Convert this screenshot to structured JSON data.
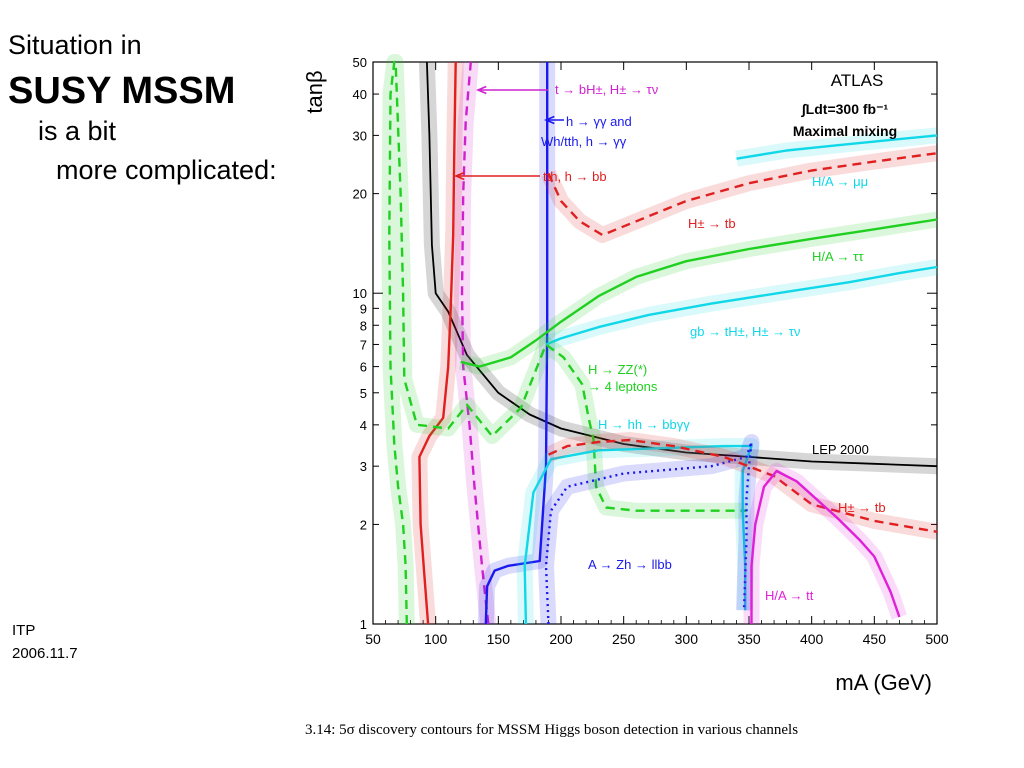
{
  "slide": {
    "title_line1": "Situation in",
    "title_line2": "SUSY MSSM",
    "title_line3": "is a bit",
    "title_line4": "more complicated:",
    "footer_org": "ITP",
    "footer_date": "2006.11.7",
    "caption": "3.14: 5σ discovery contours for MSSM Higgs boson detection in various channels"
  },
  "chart_data": {
    "type": "line",
    "experiment": "ATLAS",
    "luminosity": "∫Ldt=300 fb⁻¹",
    "scenario": "Maximal mixing",
    "xlabel": "mA (GeV)",
    "ylabel": "tanβ",
    "xlim": [
      50,
      500
    ],
    "ylim": [
      1,
      50
    ],
    "yscale": "log",
    "x_ticks": [
      50,
      100,
      150,
      200,
      250,
      300,
      350,
      400,
      450,
      500
    ],
    "y_ticks": [
      1,
      2,
      3,
      4,
      5,
      6,
      7,
      8,
      9,
      10,
      20,
      30,
      40,
      50
    ],
    "series": [
      {
        "name": "LEP 2000",
        "color": "#000000",
        "style": "solid",
        "points": [
          [
            93,
            50
          ],
          [
            95,
            30
          ],
          [
            97,
            14
          ],
          [
            100,
            10
          ],
          [
            110,
            8.8
          ],
          [
            125,
            6.5
          ],
          [
            150,
            5.0
          ],
          [
            175,
            4.3
          ],
          [
            200,
            3.9
          ],
          [
            250,
            3.5
          ],
          [
            300,
            3.3
          ],
          [
            350,
            3.2
          ],
          [
            400,
            3.1
          ],
          [
            450,
            3.05
          ],
          [
            500,
            3.0
          ]
        ]
      },
      {
        "name": "tth, h → bb",
        "color": "#e02020",
        "style": "solid",
        "points": [
          [
            94,
            1
          ],
          [
            91,
            1.4
          ],
          [
            88,
            2.0
          ],
          [
            87,
            3.2
          ],
          [
            95,
            3.7
          ],
          [
            106,
            4.2
          ],
          [
            110,
            6.0
          ],
          [
            112,
            9.0
          ],
          [
            114,
            15
          ],
          [
            115,
            30
          ],
          [
            116,
            50
          ]
        ]
      },
      {
        "name": "t → bH±, H± → τν",
        "color": "#d020d0",
        "style": "dashed",
        "points": [
          [
            142,
            1
          ],
          [
            137,
            1.5
          ],
          [
            131,
            2.6
          ],
          [
            127,
            4.0
          ],
          [
            122,
            6.0
          ],
          [
            121,
            10
          ],
          [
            122,
            20
          ],
          [
            124,
            33
          ],
          [
            128,
            50
          ]
        ]
      },
      {
        "name": "h → γγ and Wh/tth, h → γγ",
        "color": "#1a1aee",
        "style": "solid",
        "points": [
          [
            140,
            1
          ],
          [
            141,
            1.3
          ],
          [
            147,
            1.45
          ],
          [
            158,
            1.5
          ],
          [
            183,
            1.55
          ],
          [
            188,
            3
          ],
          [
            189,
            8
          ],
          [
            189,
            20
          ],
          [
            189,
            50
          ]
        ]
      },
      {
        "name": "H± → tb (high)",
        "color": "#e02020",
        "style": "dashed",
        "points": [
          [
            190,
            23
          ],
          [
            200,
            19
          ],
          [
            215,
            16.5
          ],
          [
            233,
            15
          ],
          [
            260,
            16.5
          ],
          [
            300,
            19
          ],
          [
            350,
            21.5
          ],
          [
            400,
            23.5
          ],
          [
            450,
            25
          ],
          [
            500,
            26.5
          ]
        ]
      },
      {
        "name": "H/A → μμ",
        "color": "#10d8e8",
        "style": "solid",
        "points": [
          [
            340,
            25.5
          ],
          [
            380,
            27
          ],
          [
            420,
            28
          ],
          [
            460,
            29
          ],
          [
            500,
            30
          ]
        ]
      },
      {
        "name": "H/A → ττ",
        "color": "#20d020",
        "style": "solid",
        "points": [
          [
            120,
            6.2
          ],
          [
            135,
            6.0
          ],
          [
            160,
            6.4
          ],
          [
            180,
            7.2
          ],
          [
            200,
            8.2
          ],
          [
            230,
            9.8
          ],
          [
            260,
            11.2
          ],
          [
            300,
            12.5
          ],
          [
            350,
            13.6
          ],
          [
            400,
            14.6
          ],
          [
            450,
            15.6
          ],
          [
            500,
            16.7
          ]
        ]
      },
      {
        "name": "gb → tH±, H± → τν",
        "color": "#10d8e8",
        "style": "solid",
        "points": [
          [
            188,
            7
          ],
          [
            200,
            7.3
          ],
          [
            230,
            7.9
          ],
          [
            270,
            8.6
          ],
          [
            320,
            9.3
          ],
          [
            380,
            10.1
          ],
          [
            430,
            10.8
          ],
          [
            470,
            11.5
          ],
          [
            500,
            12.0
          ]
        ]
      },
      {
        "name": "H → ZZ(*) → 4 leptons",
        "color": "#20d020",
        "style": "dashed",
        "points": [
          [
            77,
            1
          ],
          [
            76,
            1.5
          ],
          [
            74,
            2.0
          ],
          [
            70,
            2.6
          ],
          [
            67,
            3.5
          ],
          [
            64,
            6
          ],
          [
            63,
            15
          ],
          [
            64,
            40
          ],
          [
            67,
            50
          ],
          [
            68,
            50
          ],
          [
            72,
            20
          ],
          [
            74,
            10
          ],
          [
            75,
            5.5
          ],
          [
            85,
            4.0
          ],
          [
            110,
            3.9
          ],
          [
            125,
            4.6
          ],
          [
            145,
            3.7
          ],
          [
            168,
            4.5
          ],
          [
            188,
            7
          ],
          [
            202,
            6.4
          ],
          [
            217,
            5.3
          ],
          [
            222,
            4.2
          ],
          [
            226,
            3.6
          ],
          [
            228,
            2.6
          ],
          [
            236,
            2.25
          ],
          [
            260,
            2.2
          ],
          [
            300,
            2.2
          ],
          [
            335,
            2.2
          ],
          [
            348,
            2.2
          ]
        ]
      },
      {
        "name": "H → hh → bbγγ",
        "color": "#10d8e8",
        "style": "solid",
        "points": [
          [
            172,
            1
          ],
          [
            171,
            1.5
          ],
          [
            178,
            2.5
          ],
          [
            192,
            3.15
          ],
          [
            230,
            3.35
          ],
          [
            280,
            3.4
          ],
          [
            330,
            3.45
          ],
          [
            352,
            3.45
          ],
          [
            345,
            2.9
          ],
          [
            345,
            2.2
          ],
          [
            347,
            1.5
          ],
          [
            347,
            1.1
          ]
        ]
      },
      {
        "name": "A → Zh → llbb",
        "color": "#1a1aee",
        "style": "dotted",
        "points": [
          [
            190,
            1
          ],
          [
            188,
            1.5
          ],
          [
            192,
            2.2
          ],
          [
            205,
            2.6
          ],
          [
            250,
            2.85
          ],
          [
            320,
            3.0
          ],
          [
            348,
            3.2
          ],
          [
            352,
            3.55
          ],
          [
            350,
            3.0
          ],
          [
            348,
            2.4
          ],
          [
            348,
            1.8
          ],
          [
            346,
            1.1
          ]
        ]
      },
      {
        "name": "H± → tb (low)",
        "color": "#e02020",
        "style": "dashed",
        "points": [
          [
            190,
            3.25
          ],
          [
            205,
            3.45
          ],
          [
            230,
            3.55
          ],
          [
            255,
            3.6
          ],
          [
            290,
            3.45
          ],
          [
            330,
            3.2
          ],
          [
            370,
            2.8
          ],
          [
            400,
            2.3
          ],
          [
            450,
            2.05
          ],
          [
            500,
            1.9
          ]
        ]
      },
      {
        "name": "H/A → tt",
        "color": "#e020d8",
        "style": "solid",
        "points": [
          [
            352,
            1
          ],
          [
            352,
            1.5
          ],
          [
            355,
            2.0
          ],
          [
            362,
            2.6
          ],
          [
            372,
            2.9
          ],
          [
            388,
            2.7
          ],
          [
            420,
            2.1
          ],
          [
            438,
            1.8
          ],
          [
            450,
            1.6
          ],
          [
            463,
            1.25
          ],
          [
            470,
            1.05
          ]
        ]
      }
    ],
    "annotations": [
      {
        "text": "t → bH±, H± → τν",
        "color": "#d020d0"
      },
      {
        "text": "h → γγ and",
        "color": "#1a1aee"
      },
      {
        "text": "Wh/tth, h → γγ",
        "color": "#1a1aee"
      },
      {
        "text": "tth, h → bb",
        "color": "#e02020"
      },
      {
        "text": "H/A → μμ",
        "color": "#10d8e8"
      },
      {
        "text": "H± → tb",
        "color": "#e02020"
      },
      {
        "text": "H/A → ττ",
        "color": "#20d020"
      },
      {
        "text": "gb → tH±, H± → τν",
        "color": "#10d8e8"
      },
      {
        "text": "H → ZZ(*)",
        "color": "#20d020"
      },
      {
        "text": "→ 4 leptons",
        "color": "#20d020"
      },
      {
        "text": "H → hh → bbγγ",
        "color": "#10d8e8"
      },
      {
        "text": "LEP 2000",
        "color": "#000000"
      },
      {
        "text": "H± → tb",
        "color": "#e02020"
      },
      {
        "text": "A → Zh → llbb",
        "color": "#1a1aee"
      },
      {
        "text": "H/A → tt",
        "color": "#e020d8"
      }
    ]
  }
}
